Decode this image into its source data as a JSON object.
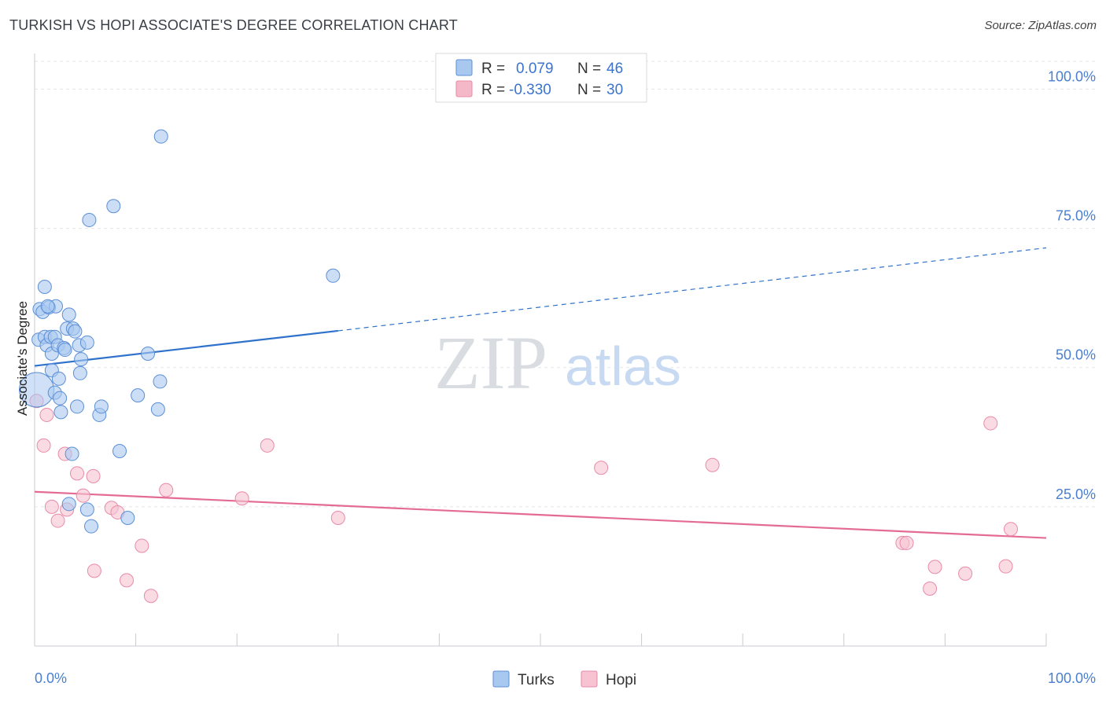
{
  "header": {
    "title": "TURKISH VS HOPI ASSOCIATE'S DEGREE CORRELATION CHART",
    "source": "Source: ZipAtlas.com"
  },
  "watermark": {
    "zip": "ZIP",
    "atlas": "atlas"
  },
  "legend": {
    "rows": [
      {
        "r_label": "R =",
        "r_value": "0.079",
        "n_label": "N =",
        "n_value": "46",
        "color": "#a9c8f0"
      },
      {
        "r_label": "R =",
        "r_value": "-0.330",
        "n_label": "N =",
        "n_value": "30",
        "color": "#f5b8c9"
      }
    ]
  },
  "colors": {
    "turks_fill": "#a9c8f0",
    "turks_stroke": "#5b8fd6",
    "turks_line": "#2f72cc",
    "hopi_fill": "#f7c3d2",
    "hopi_stroke": "#e98aa8",
    "hopi_line": "#e46b95",
    "axis_tick_text": "#4a7fd0",
    "grid": "#e3e5e8"
  },
  "chart_data": {
    "type": "scatter",
    "title": "TURKISH VS HOPI ASSOCIATE'S DEGREE CORRELATION CHART",
    "xlabel": "",
    "ylabel": "Associate's Degree",
    "xlim": [
      0,
      100
    ],
    "ylim": [
      0,
      105
    ],
    "x_tick_labels": [
      "0.0%",
      "100.0%"
    ],
    "y_ticks": [
      25,
      50,
      75,
      100
    ],
    "y_tick_labels": [
      "25.0%",
      "50.0%",
      "75.0%",
      "100.0%"
    ],
    "grid": true,
    "legend_position": "top-center",
    "series": [
      {
        "name": "Turks",
        "r": 0.079,
        "n": 46,
        "trend": {
          "x": [
            0,
            30
          ],
          "y": [
            50.3,
            56.6
          ],
          "dashed_to": [
            100,
            71.5
          ]
        },
        "points": [
          {
            "x": 0.5,
            "y": 60.5,
            "big": false
          },
          {
            "x": 0.8,
            "y": 60.0,
            "big": false
          },
          {
            "x": 0.2,
            "y": 46.0,
            "big": true
          },
          {
            "x": 0.4,
            "y": 55.0,
            "big": false
          },
          {
            "x": 1.0,
            "y": 55.5,
            "big": false
          },
          {
            "x": 1.0,
            "y": 64.5,
            "big": false
          },
          {
            "x": 1.2,
            "y": 54.0,
            "big": false
          },
          {
            "x": 1.4,
            "y": 60.8,
            "big": false
          },
          {
            "x": 1.6,
            "y": 55.5,
            "big": false
          },
          {
            "x": 1.7,
            "y": 49.5,
            "big": false
          },
          {
            "x": 1.7,
            "y": 52.5,
            "big": false
          },
          {
            "x": 2.0,
            "y": 55.5,
            "big": false
          },
          {
            "x": 2.0,
            "y": 45.5,
            "big": false
          },
          {
            "x": 2.1,
            "y": 61.0,
            "big": false
          },
          {
            "x": 2.3,
            "y": 54.0,
            "big": false
          },
          {
            "x": 2.4,
            "y": 48.0,
            "big": false
          },
          {
            "x": 2.5,
            "y": 44.5,
            "big": false
          },
          {
            "x": 2.6,
            "y": 42.0,
            "big": false
          },
          {
            "x": 2.9,
            "y": 53.5,
            "big": false
          },
          {
            "x": 3.0,
            "y": 53.2,
            "big": false
          },
          {
            "x": 3.2,
            "y": 57.0,
            "big": false
          },
          {
            "x": 3.4,
            "y": 59.5,
            "big": false
          },
          {
            "x": 3.4,
            "y": 25.5,
            "big": false
          },
          {
            "x": 3.7,
            "y": 34.5,
            "big": false
          },
          {
            "x": 3.8,
            "y": 57.0,
            "big": false
          },
          {
            "x": 4.0,
            "y": 56.5,
            "big": false
          },
          {
            "x": 4.2,
            "y": 43.0,
            "big": false
          },
          {
            "x": 4.4,
            "y": 54.0,
            "big": false
          },
          {
            "x": 4.5,
            "y": 49.0,
            "big": false
          },
          {
            "x": 4.6,
            "y": 51.5,
            "big": false
          },
          {
            "x": 5.2,
            "y": 54.5,
            "big": false
          },
          {
            "x": 5.2,
            "y": 24.5,
            "big": false
          },
          {
            "x": 5.4,
            "y": 76.5,
            "big": false
          },
          {
            "x": 5.6,
            "y": 21.5,
            "big": false
          },
          {
            "x": 6.4,
            "y": 41.5,
            "big": false
          },
          {
            "x": 6.6,
            "y": 43.0,
            "big": false
          },
          {
            "x": 7.8,
            "y": 79.0,
            "big": false
          },
          {
            "x": 8.4,
            "y": 35.0,
            "big": false
          },
          {
            "x": 9.2,
            "y": 23.0,
            "big": false
          },
          {
            "x": 10.2,
            "y": 45.0,
            "big": false
          },
          {
            "x": 11.2,
            "y": 52.5,
            "big": false
          },
          {
            "x": 12.2,
            "y": 42.5,
            "big": false
          },
          {
            "x": 12.4,
            "y": 47.5,
            "big": false
          },
          {
            "x": 12.5,
            "y": 91.5,
            "big": false
          },
          {
            "x": 29.5,
            "y": 66.5,
            "big": false
          },
          {
            "x": 1.3,
            "y": 61.0,
            "big": false
          }
        ]
      },
      {
        "name": "Hopi",
        "r": -0.33,
        "n": 30,
        "trend": {
          "x": [
            0,
            100
          ],
          "y": [
            27.7,
            19.4
          ]
        },
        "points": [
          {
            "x": 0.2,
            "y": 44.0,
            "big": false
          },
          {
            "x": 0.9,
            "y": 36.0,
            "big": false
          },
          {
            "x": 1.2,
            "y": 41.5,
            "big": false
          },
          {
            "x": 1.7,
            "y": 25.0,
            "big": false
          },
          {
            "x": 2.3,
            "y": 22.5,
            "big": false
          },
          {
            "x": 3.0,
            "y": 34.5,
            "big": false
          },
          {
            "x": 3.2,
            "y": 24.5,
            "big": false
          },
          {
            "x": 4.2,
            "y": 31.0,
            "big": false
          },
          {
            "x": 4.8,
            "y": 27.0,
            "big": false
          },
          {
            "x": 5.8,
            "y": 30.5,
            "big": false
          },
          {
            "x": 5.9,
            "y": 13.5,
            "big": false
          },
          {
            "x": 7.6,
            "y": 24.8,
            "big": false
          },
          {
            "x": 8.2,
            "y": 24.0,
            "big": false
          },
          {
            "x": 9.1,
            "y": 11.8,
            "big": false
          },
          {
            "x": 10.6,
            "y": 18.0,
            "big": false
          },
          {
            "x": 11.5,
            "y": 9.0,
            "big": false
          },
          {
            "x": 13.0,
            "y": 28.0,
            "big": false
          },
          {
            "x": 20.5,
            "y": 26.5,
            "big": false
          },
          {
            "x": 23.0,
            "y": 36.0,
            "big": false
          },
          {
            "x": 30.0,
            "y": 23.0,
            "big": false
          },
          {
            "x": 56.0,
            "y": 32.0,
            "big": false
          },
          {
            "x": 67.0,
            "y": 32.5,
            "big": false
          },
          {
            "x": 85.8,
            "y": 18.5,
            "big": false
          },
          {
            "x": 86.2,
            "y": 18.5,
            "big": false
          },
          {
            "x": 88.5,
            "y": 10.3,
            "big": false
          },
          {
            "x": 89.0,
            "y": 14.2,
            "big": false
          },
          {
            "x": 92.0,
            "y": 13.0,
            "big": false
          },
          {
            "x": 94.5,
            "y": 40.0,
            "big": false
          },
          {
            "x": 96.0,
            "y": 14.3,
            "big": false
          },
          {
            "x": 96.5,
            "y": 21.0,
            "big": false
          }
        ]
      }
    ]
  }
}
